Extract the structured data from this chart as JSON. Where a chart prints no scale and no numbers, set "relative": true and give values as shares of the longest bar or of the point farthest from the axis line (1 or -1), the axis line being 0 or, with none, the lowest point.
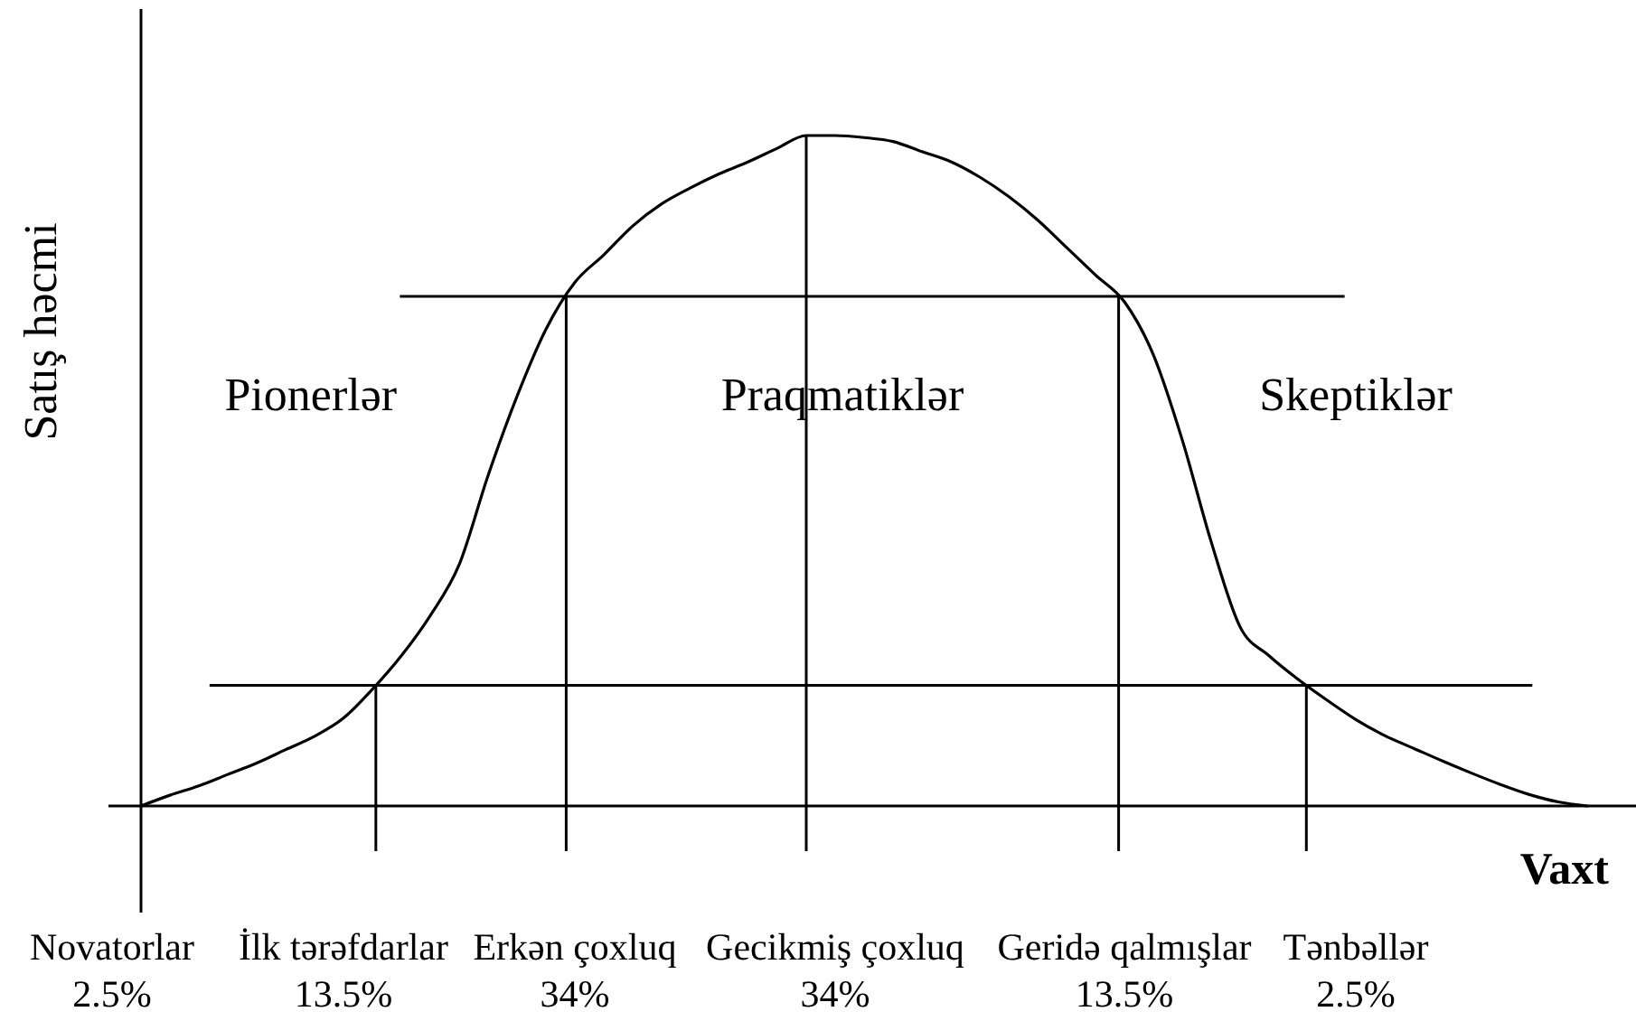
{
  "chart_data": {
    "type": "line",
    "relative": true,
    "color": "#000000",
    "xlabel": "Vaxt",
    "ylabel": "Satış həcmi",
    "categories": [
      "Novatorlar\n2.5%",
      null,
      null,
      null,
      null,
      null,
      null,
      null,
      "İlk tərəfdarlar\n13.5%",
      null,
      null,
      null,
      null,
      null,
      null,
      null,
      "Erkən çoxluq\n34%",
      null,
      null,
      null,
      null,
      null,
      null,
      null,
      null,
      "Gecikmiş çoxluq\n34%",
      null,
      null,
      null,
      null,
      null,
      null,
      null,
      null,
      null,
      "Geridə qalmışlar\n13.5%",
      null,
      null,
      null,
      null,
      null,
      null,
      null,
      "Tənbəllər\n2.5%",
      null,
      null,
      null,
      null,
      null,
      null,
      null,
      null,
      null
    ],
    "values": [
      null,
      0,
      0.016,
      0.03,
      0.047,
      0.064,
      0.084,
      0.104,
      0.131,
      0.174,
      0.224,
      0.284,
      0.36,
      0.493,
      0.611,
      0.711,
      0.781,
      0.822,
      0.865,
      0.898,
      0.922,
      0.943,
      0.961,
      0.981,
      1,
      1,
      0.997,
      0.991,
      0.976,
      0.961,
      0.938,
      0.909,
      0.874,
      0.833,
      0.792,
      0.752,
      0.673,
      0.546,
      0.394,
      0.267,
      0.224,
      0.189,
      0.158,
      0.129,
      0.105,
      0.086,
      0.067,
      0.049,
      0.032,
      0.017,
      0.006,
      0,
      null
    ],
    "ref_lines": [
      {
        "axis": "y",
        "value": 0.76
      },
      {
        "axis": "y",
        "value": 0.18
      }
    ],
    "annotations": [
      "Pionerlər",
      "Praqmatiklər",
      "Skeptiklər"
    ]
  }
}
